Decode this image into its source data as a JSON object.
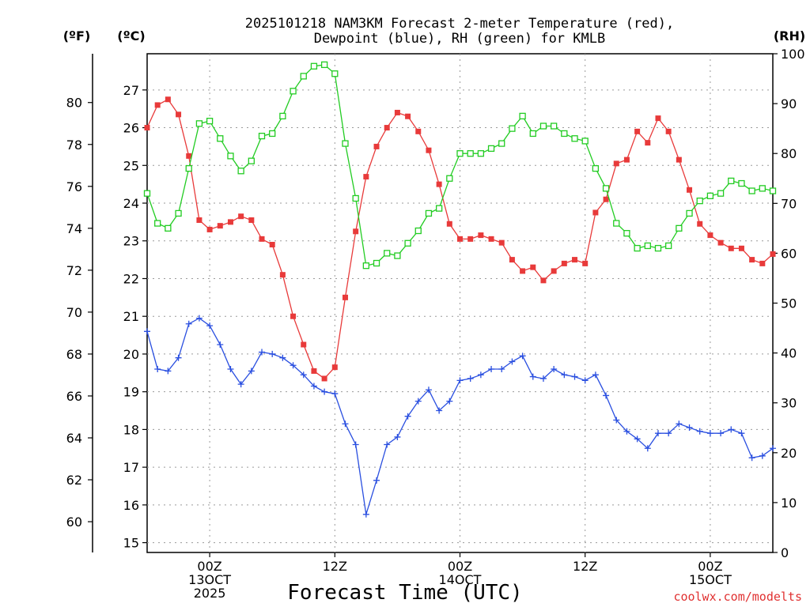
{
  "chart_data": {
    "type": "line",
    "title_line1": "2025101218 NAM3KM Forecast 2-meter Temperature (red),",
    "title_line2": "Dewpoint (blue), RH (green) for KMLB",
    "xlabel": "Forecast Time (UTC)",
    "credit": "coolwx.com/modelts",
    "units": {
      "f": "(ºF)",
      "c": "(ºC)",
      "rh": "(RH)"
    },
    "x_range_hours": [
      0,
      60
    ],
    "c_range": [
      14.74,
      27.96
    ],
    "f_ticks": [
      "60",
      "62",
      "64",
      "66",
      "68",
      "70",
      "72",
      "74",
      "76",
      "78",
      "80"
    ],
    "c_ticks": [
      "15",
      "16",
      "17",
      "18",
      "19",
      "20",
      "21",
      "22",
      "23",
      "24",
      "25",
      "26",
      "27"
    ],
    "rh_ticks": [
      "0",
      "10",
      "20",
      "30",
      "40",
      "50",
      "60",
      "70",
      "80",
      "90",
      "100"
    ],
    "x_ticks": [
      {
        "hour": 6,
        "lines": [
          "00Z",
          "13OCT",
          "2025"
        ]
      },
      {
        "hour": 18,
        "lines": [
          "12Z"
        ]
      },
      {
        "hour": 30,
        "lines": [
          "00Z",
          "14OCT"
        ]
      },
      {
        "hour": 42,
        "lines": [
          "12Z"
        ]
      },
      {
        "hour": 54,
        "lines": [
          "00Z",
          "15OCT"
        ]
      }
    ],
    "series": [
      {
        "name": "Temperature",
        "unit": "C",
        "color": "#e83a3a",
        "marker": "filled-square",
        "values": [
          26.0,
          26.6,
          26.75,
          26.35,
          25.25,
          23.55,
          23.3,
          23.4,
          23.5,
          23.65,
          23.55,
          23.05,
          22.9,
          22.1,
          21.0,
          20.25,
          19.55,
          19.35,
          19.65,
          21.5,
          23.25,
          24.7,
          25.5,
          26.0,
          26.4,
          26.3,
          25.9,
          25.4,
          24.5,
          23.45,
          23.05,
          23.05,
          23.15,
          23.05,
          22.95,
          22.5,
          22.2,
          22.3,
          21.95,
          22.2,
          22.4,
          22.5,
          22.4,
          23.75,
          24.1,
          25.05,
          25.15,
          25.9,
          25.6,
          26.25,
          25.9,
          25.15,
          24.35,
          23.45,
          23.15,
          22.95,
          22.8,
          22.8,
          22.5,
          22.4,
          22.65
        ]
      },
      {
        "name": "Dewpoint",
        "unit": "C",
        "color": "#2a4fe0",
        "marker": "plus",
        "values": [
          20.6,
          19.6,
          19.55,
          19.9,
          20.8,
          20.95,
          20.75,
          20.25,
          19.6,
          19.2,
          19.55,
          20.05,
          20.0,
          19.9,
          19.7,
          19.45,
          19.15,
          19.0,
          18.95,
          18.15,
          17.6,
          15.75,
          16.65,
          17.6,
          17.8,
          18.35,
          18.75,
          19.05,
          18.5,
          18.75,
          19.3,
          19.35,
          19.45,
          19.6,
          19.6,
          19.8,
          19.95,
          19.4,
          19.35,
          19.6,
          19.45,
          19.4,
          19.3,
          19.45,
          18.9,
          18.25,
          17.95,
          17.75,
          17.5,
          17.9,
          17.9,
          18.15,
          18.05,
          17.95,
          17.9,
          17.9,
          18.0,
          17.9,
          17.25,
          17.3,
          17.5
        ]
      },
      {
        "name": "RH",
        "unit": "%",
        "color": "#22cc22",
        "marker": "open-square",
        "values": [
          72,
          66,
          65,
          68,
          77,
          86,
          86.5,
          83,
          79.5,
          76.5,
          78.5,
          83.5,
          84,
          87.5,
          92.5,
          95.5,
          97.5,
          97.8,
          96,
          82,
          71,
          57.5,
          58,
          60,
          59.5,
          62,
          64.5,
          68,
          69,
          75,
          80,
          80,
          80,
          81,
          82,
          85,
          87.5,
          84,
          85.5,
          85.5,
          84,
          83,
          82.5,
          77,
          73,
          66,
          64,
          61,
          61.5,
          61,
          61.5,
          65,
          68,
          70.5,
          71.5,
          72,
          74.5,
          74,
          72.5,
          73,
          72.5
        ]
      }
    ]
  }
}
